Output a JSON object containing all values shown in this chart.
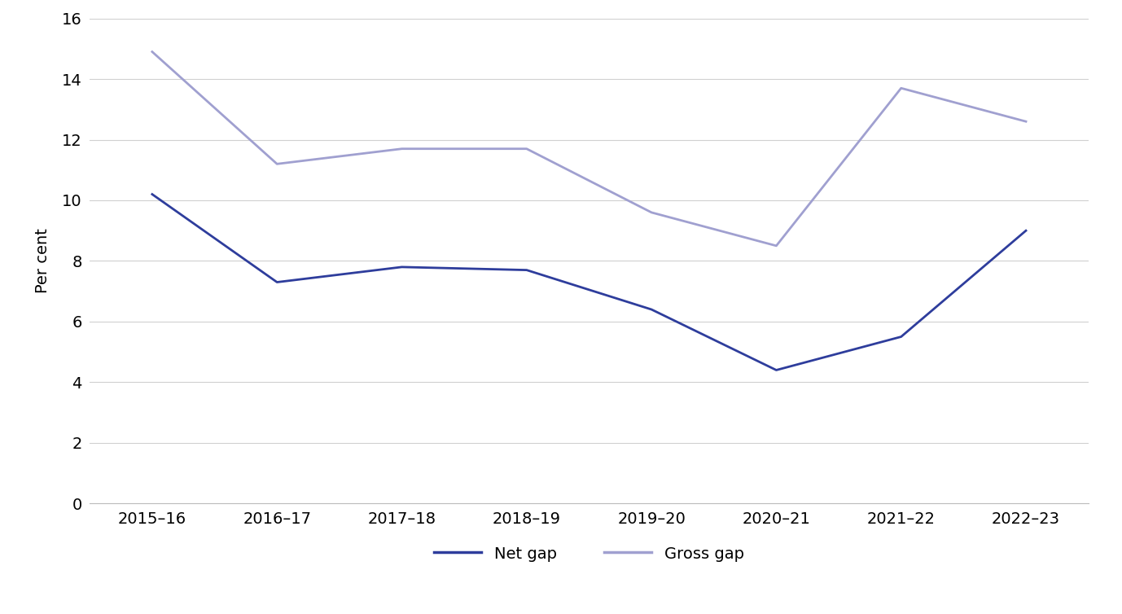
{
  "categories": [
    "2015–16",
    "2016–17",
    "2017–18",
    "2018–19",
    "2019–20",
    "2020–21",
    "2021–22",
    "2022–23"
  ],
  "net_gap": [
    10.2,
    7.3,
    7.8,
    7.7,
    6.4,
    4.4,
    5.5,
    9.0
  ],
  "gross_gap": [
    14.9,
    11.2,
    11.7,
    11.7,
    9.6,
    8.5,
    13.7,
    12.6
  ],
  "net_gap_color": "#2e3d9c",
  "gross_gap_color": "#a0a0d0",
  "ylabel": "Per cent",
  "ylim": [
    0,
    16
  ],
  "yticks": [
    0,
    2,
    4,
    6,
    8,
    10,
    12,
    14,
    16
  ],
  "legend_net": "Net gap",
  "legend_gross": "Gross gap",
  "background_color": "#ffffff",
  "grid_color": "#d0d0d0",
  "line_width": 2.0,
  "tick_fontsize": 14,
  "label_fontsize": 14,
  "legend_fontsize": 14
}
